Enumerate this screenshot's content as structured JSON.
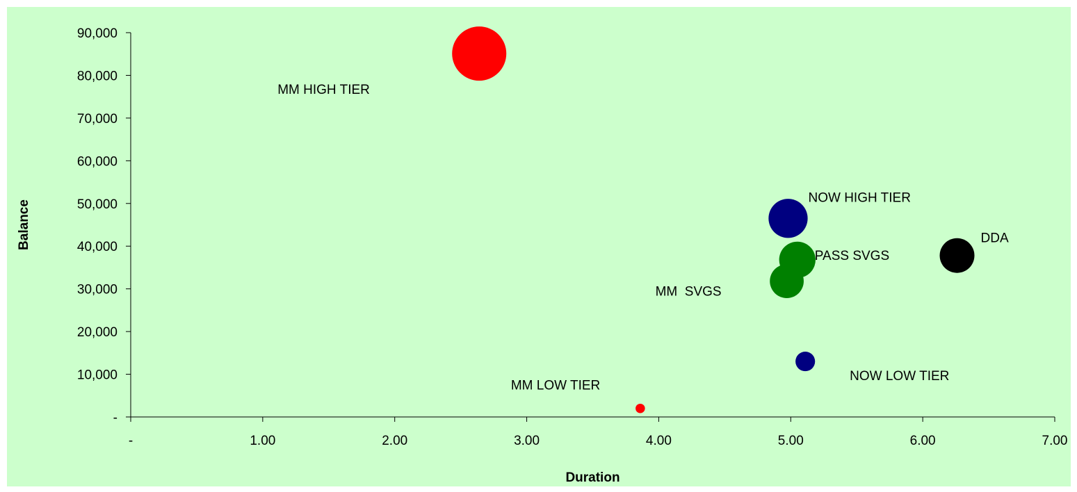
{
  "chart_data": {
    "type": "bubble",
    "title": "",
    "xlabel": "Duration",
    "ylabel": "Balance",
    "xlim": [
      0,
      7
    ],
    "ylim": [
      0,
      90000
    ],
    "x_ticks": [
      0,
      1,
      2,
      3,
      4,
      5,
      6,
      7
    ],
    "x_tick_labels": [
      "-",
      "1.00",
      "2.00",
      "3.00",
      "4.00",
      "5.00",
      "6.00",
      "7.00"
    ],
    "y_ticks": [
      0,
      10000,
      20000,
      30000,
      40000,
      50000,
      60000,
      70000,
      80000,
      90000
    ],
    "y_tick_labels": [
      "-",
      "10,000",
      "20,000",
      "30,000",
      "40,000",
      "50,000",
      "60,000",
      "70,000",
      "80,000",
      "90,000"
    ],
    "grid": false,
    "legend": "none",
    "background_color": "#ccffcc",
    "points": [
      {
        "label": "MM HIGH TIER",
        "x": 2.64,
        "y": 85100,
        "size": 1.0,
        "color": "#ff0000"
      },
      {
        "label": "NOW HIGH TIER",
        "x": 4.98,
        "y": 46500,
        "size": 0.52,
        "color": "#000080"
      },
      {
        "label": "PASS SVGS",
        "x": 5.05,
        "y": 36800,
        "size": 0.45,
        "color": "#008000"
      },
      {
        "label": "MM  SVGS",
        "x": 4.97,
        "y": 31800,
        "size": 0.39,
        "color": "#008000"
      },
      {
        "label": "DDA",
        "x": 6.26,
        "y": 37800,
        "size": 0.41,
        "color": "#000000"
      },
      {
        "label": "NOW LOW TIER",
        "x": 5.11,
        "y": 13000,
        "size": 0.13,
        "color": "#000080"
      },
      {
        "label": "MM LOW TIER",
        "x": 3.86,
        "y": 2000,
        "size": 0.03,
        "color": "#ff0000"
      }
    ]
  }
}
